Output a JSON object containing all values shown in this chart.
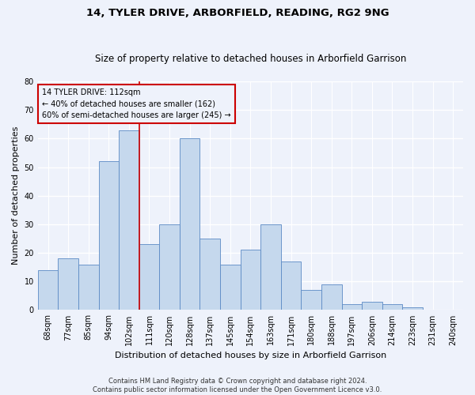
{
  "title1": "14, TYLER DRIVE, ARBORFIELD, READING, RG2 9NG",
  "title2": "Size of property relative to detached houses in Arborfield Garrison",
  "xlabel": "Distribution of detached houses by size in Arborfield Garrison",
  "ylabel": "Number of detached properties",
  "footnote": "Contains HM Land Registry data © Crown copyright and database right 2024.\nContains public sector information licensed under the Open Government Licence v3.0.",
  "bin_labels": [
    "68sqm",
    "77sqm",
    "85sqm",
    "94sqm",
    "102sqm",
    "111sqm",
    "120sqm",
    "128sqm",
    "137sqm",
    "145sqm",
    "154sqm",
    "163sqm",
    "171sqm",
    "180sqm",
    "188sqm",
    "197sqm",
    "206sqm",
    "214sqm",
    "223sqm",
    "231sqm",
    "240sqm"
  ],
  "bar_heights": [
    14,
    18,
    16,
    52,
    63,
    23,
    30,
    60,
    25,
    16,
    21,
    30,
    17,
    7,
    9,
    2,
    3,
    2,
    1,
    0,
    0
  ],
  "bar_color": "#c5d8ed",
  "bar_edge_color": "#5b8ac5",
  "vline_x_index": 4.5,
  "vline_color": "#cc0000",
  "annotation_line1": "14 TYLER DRIVE: 112sqm",
  "annotation_line2": "← 40% of detached houses are smaller (162)",
  "annotation_line3": "60% of semi-detached houses are larger (245) →",
  "annotation_box_color": "#cc0000",
  "ylim": [
    0,
    80
  ],
  "yticks": [
    0,
    10,
    20,
    30,
    40,
    50,
    60,
    70,
    80
  ],
  "background_color": "#eef2fb",
  "grid_color": "#ffffff",
  "title1_fontsize": 9.5,
  "title2_fontsize": 8.5,
  "ylabel_fontsize": 8,
  "xlabel_fontsize": 8,
  "tick_fontsize": 7,
  "footnote_fontsize": 6
}
